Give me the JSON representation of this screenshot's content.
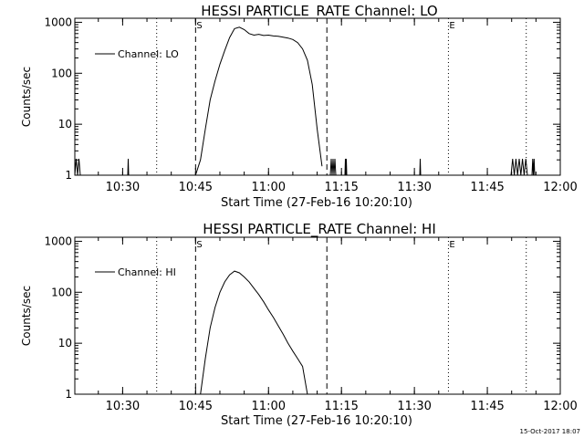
{
  "footer": {
    "timestamp": "15-Oct-2017 18:07"
  },
  "chart_data": [
    {
      "type": "line",
      "title": "HESSI PARTICLE_RATE Channel: LO",
      "xlabel": "Start Time (27-Feb-16 10:20:10)",
      "ylabel": "Counts/sec",
      "y_scale": "log",
      "xlim": [
        "10:20:10",
        "12:00:00"
      ],
      "ylim": [
        1,
        1200
      ],
      "x_ticks": [
        "10:30",
        "10:45",
        "11:00",
        "11:15",
        "11:30",
        "11:45",
        "12:00"
      ],
      "y_ticks": [
        "1",
        "10",
        "100",
        "1000"
      ],
      "legend": {
        "position": "top-left",
        "entries": [
          "Channel: LO"
        ]
      },
      "markers": [
        {
          "time": "10:37",
          "style": "dotted",
          "label": ""
        },
        {
          "time": "10:45",
          "style": "dashed",
          "label": "S"
        },
        {
          "time": "11:12",
          "style": "dashed",
          "label": ""
        },
        {
          "time": "11:37",
          "style": "dotted",
          "label": "E"
        },
        {
          "time": "11:53",
          "style": "dotted",
          "label": ""
        }
      ],
      "series": [
        {
          "name": "Channel: LO",
          "x": [
            "10:45",
            "10:46",
            "10:47",
            "10:48",
            "10:49",
            "10:50",
            "10:51",
            "10:52",
            "10:53",
            "10:54",
            "10:55",
            "10:56",
            "10:57",
            "10:58",
            "10:59",
            "11:00",
            "11:01",
            "11:02",
            "11:03",
            "11:04",
            "11:05",
            "11:06",
            "11:07",
            "11:08",
            "11:09",
            "11:10",
            "11:11"
          ],
          "y": [
            1,
            2,
            8,
            30,
            70,
            150,
            280,
            500,
            750,
            800,
            720,
            600,
            560,
            580,
            550,
            560,
            540,
            530,
            510,
            490,
            460,
            400,
            300,
            180,
            60,
            8,
            1.5
          ]
        }
      ]
    },
    {
      "type": "line",
      "title": "HESSI PARTICLE_RATE Channel: HI",
      "xlabel": "Start Time (27-Feb-16 10:20:10)",
      "ylabel": "Counts/sec",
      "y_scale": "log",
      "xlim": [
        "10:20:10",
        "12:00:00"
      ],
      "ylim": [
        1,
        1200
      ],
      "x_ticks": [
        "10:30",
        "10:45",
        "11:00",
        "11:15",
        "11:30",
        "11:45",
        "12:00"
      ],
      "y_ticks": [
        "1",
        "10",
        "100",
        "1000"
      ],
      "legend": {
        "position": "top-left",
        "entries": [
          "Channel: HI"
        ]
      },
      "markers": [
        {
          "time": "10:37",
          "style": "dotted",
          "label": ""
        },
        {
          "time": "10:45",
          "style": "dashed",
          "label": "S"
        },
        {
          "time": "11:12",
          "style": "dashed",
          "label": ""
        },
        {
          "time": "11:37",
          "style": "dotted",
          "label": "E"
        },
        {
          "time": "11:53",
          "style": "dotted",
          "label": ""
        }
      ],
      "series": [
        {
          "name": "Channel: HI",
          "x": [
            "10:46",
            "10:47",
            "10:48",
            "10:49",
            "10:50",
            "10:51",
            "10:52",
            "10:53",
            "10:54",
            "10:55",
            "10:56",
            "10:57",
            "10:58",
            "10:59",
            "11:00",
            "11:01",
            "11:02",
            "11:03",
            "11:04",
            "11:05",
            "11:06",
            "11:07",
            "11:08"
          ],
          "y": [
            1,
            5,
            20,
            50,
            100,
            160,
            220,
            260,
            240,
            200,
            160,
            120,
            90,
            65,
            45,
            32,
            22,
            15,
            10,
            7,
            5,
            3.5,
            1
          ]
        }
      ]
    }
  ]
}
